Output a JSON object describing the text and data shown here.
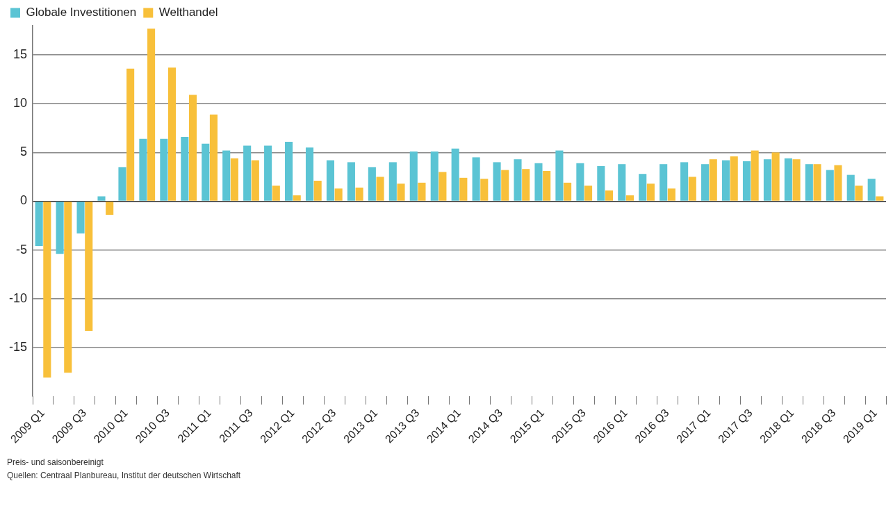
{
  "chart_data": {
    "type": "bar",
    "categories": [
      "2009 Q1",
      null,
      "2009 Q3",
      null,
      "2010 Q1",
      null,
      "2010 Q3",
      null,
      "2011 Q1",
      null,
      "2011 Q3",
      null,
      "2012 Q1",
      null,
      "2012 Q3",
      null,
      "2013 Q1",
      null,
      "2013 Q3",
      null,
      "2014 Q1",
      null,
      "2014 Q3",
      null,
      "2015 Q1",
      null,
      "2015 Q3",
      null,
      "2016 Q1",
      null,
      "2016 Q3",
      null,
      "2017 Q1",
      null,
      "2017 Q3",
      null,
      "2018 Q1",
      null,
      "2018 Q3",
      null,
      "2019 Q1"
    ],
    "series": [
      {
        "name": "Globale Investitionen",
        "color": "#5bc4d4",
        "values": [
          -4.6,
          -5.4,
          -3.3,
          0.5,
          3.5,
          6.4,
          6.4,
          6.6,
          5.9,
          5.2,
          5.7,
          5.7,
          6.1,
          5.5,
          4.2,
          4.0,
          3.5,
          4.0,
          5.1,
          5.1,
          5.4,
          4.5,
          4.0,
          4.3,
          3.9,
          5.2,
          3.9,
          3.6,
          3.8,
          2.8,
          3.8,
          4.0,
          3.8,
          4.2,
          4.1,
          4.3,
          4.4,
          3.8,
          3.2,
          2.7,
          2.3
        ]
      },
      {
        "name": "Welthandel",
        "color": "#f8c03a",
        "values": [
          -18.1,
          -17.6,
          -13.3,
          -1.4,
          13.6,
          17.7,
          13.7,
          10.9,
          8.9,
          4.4,
          4.2,
          1.6,
          0.6,
          2.1,
          1.3,
          1.4,
          2.5,
          1.8,
          1.9,
          3.0,
          2.4,
          2.3,
          3.2,
          3.3,
          3.1,
          1.9,
          1.6,
          1.1,
          0.6,
          1.8,
          1.3,
          2.5,
          4.3,
          4.6,
          5.2,
          5.0,
          4.3,
          3.8,
          3.7,
          1.6,
          0.5
        ]
      }
    ],
    "ylim": [
      -20,
      18
    ],
    "yticks": [
      -15,
      -10,
      -5,
      0,
      5,
      10,
      15
    ],
    "grid": "y",
    "legend": "top left",
    "annotations": [
      "Preis- und saisonbereinigt",
      "Quellen: Centraal Planbureau, Institut der deutschen Wirtschaft"
    ]
  }
}
